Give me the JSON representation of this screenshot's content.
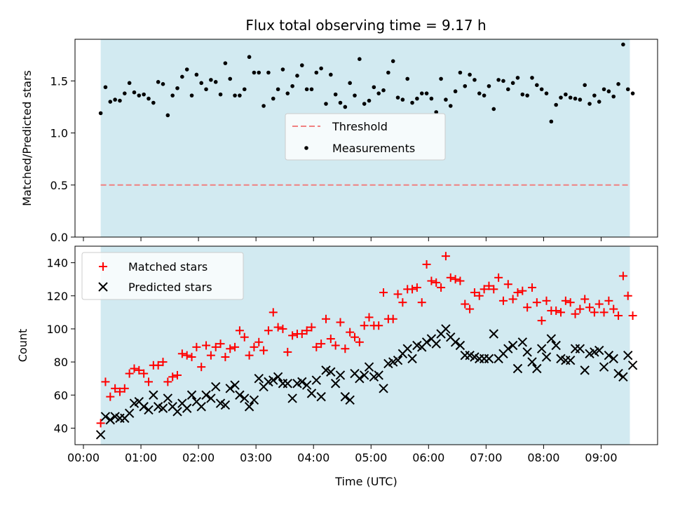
{
  "chart_data": [
    {
      "type": "scatter",
      "title": "Flux total observing time = 9.17 h",
      "ylabel": "Matched/Predicted stars",
      "xlabel": "",
      "xlim": [
        "00:00",
        "10:00"
      ],
      "ylim": [
        0,
        1.9
      ],
      "yticks": [
        "0.0",
        "0.5",
        "1.0",
        "1.5"
      ],
      "shaded_span": [
        "00:18",
        "09:30"
      ],
      "shade_color": "#add8e6",
      "legend": {
        "placement": "center",
        "entries": [
          "Threshold",
          "Measurements"
        ]
      },
      "threshold": {
        "name": "Threshold",
        "value": 0.5,
        "color": "#f08080"
      },
      "series": [
        {
          "name": "Measurements",
          "color": "#000000",
          "x": [
            "00:18",
            "00:23",
            "00:28",
            "00:33",
            "00:38",
            "00:43",
            "00:48",
            "00:53",
            "00:58",
            "01:03",
            "01:08",
            "01:13",
            "01:18",
            "01:23",
            "01:28",
            "01:33",
            "01:38",
            "01:43",
            "01:48",
            "01:53",
            "01:58",
            "02:03",
            "02:08",
            "02:13",
            "02:18",
            "02:23",
            "02:28",
            "02:33",
            "02:38",
            "02:43",
            "02:48",
            "02:53",
            "02:58",
            "03:03",
            "03:08",
            "03:13",
            "03:18",
            "03:23",
            "03:28",
            "03:33",
            "03:38",
            "03:43",
            "03:48",
            "03:53",
            "03:58",
            "04:03",
            "04:08",
            "04:13",
            "04:18",
            "04:23",
            "04:28",
            "04:33",
            "04:38",
            "04:43",
            "04:48",
            "04:53",
            "04:58",
            "05:03",
            "05:08",
            "05:13",
            "05:18",
            "05:23",
            "05:28",
            "05:33",
            "05:38",
            "05:43",
            "05:48",
            "05:53",
            "05:58",
            "06:03",
            "06:08",
            "06:13",
            "06:18",
            "06:23",
            "06:28",
            "06:33",
            "06:38",
            "06:43",
            "06:48",
            "06:53",
            "06:58",
            "07:03",
            "07:08",
            "07:13",
            "07:18",
            "07:23",
            "07:28",
            "07:33",
            "07:38",
            "07:43",
            "07:48",
            "07:53",
            "07:58",
            "08:03",
            "08:08",
            "08:13",
            "08:18",
            "08:23",
            "08:28",
            "08:33",
            "08:38",
            "08:43",
            "08:48",
            "08:53",
            "08:58",
            "09:03",
            "09:08",
            "09:13",
            "09:18",
            "09:23",
            "09:28",
            "09:33"
          ],
          "y": [
            1.19,
            1.44,
            1.3,
            1.32,
            1.31,
            1.38,
            1.48,
            1.39,
            1.36,
            1.37,
            1.33,
            1.29,
            1.49,
            1.47,
            1.17,
            1.36,
            1.43,
            1.54,
            1.61,
            1.36,
            1.56,
            1.48,
            1.42,
            1.51,
            1.49,
            1.37,
            1.67,
            1.52,
            1.36,
            1.36,
            1.42,
            1.73,
            1.58,
            1.58,
            1.26,
            1.58,
            1.33,
            1.42,
            1.61,
            1.38,
            1.45,
            1.55,
            1.65,
            1.42,
            1.42,
            1.58,
            1.62,
            1.28,
            1.56,
            1.37,
            1.29,
            1.25,
            1.48,
            1.36,
            1.71,
            1.28,
            1.31,
            1.44,
            1.38,
            1.41,
            1.58,
            1.69,
            1.34,
            1.32,
            1.52,
            1.29,
            1.33,
            1.38,
            1.38,
            1.33,
            1.2,
            1.52,
            1.32,
            1.26,
            1.4,
            1.58,
            1.45,
            1.56,
            1.51,
            1.38,
            1.36,
            1.45,
            1.23,
            1.51,
            1.5,
            1.42,
            1.48,
            1.53,
            1.37,
            1.36,
            1.53,
            1.46,
            1.42,
            1.38,
            1.11,
            1.27,
            1.34,
            1.37,
            1.34,
            1.33,
            1.32,
            1.46,
            1.28,
            1.36,
            1.3,
            1.42,
            1.4,
            1.35,
            1.47,
            1.85,
            1.42,
            1.38
          ]
        }
      ]
    },
    {
      "type": "scatter",
      "title": "",
      "xlabel": "Time (UTC)",
      "ylabel": "Count",
      "xlim": [
        "00:00",
        "10:00"
      ],
      "xticks": [
        "00:00",
        "01:00",
        "02:00",
        "03:00",
        "04:00",
        "05:00",
        "06:00",
        "07:00",
        "08:00",
        "09:00"
      ],
      "ylim": [
        30,
        150
      ],
      "yticks": [
        "40",
        "60",
        "80",
        "100",
        "120",
        "140"
      ],
      "shaded_span": [
        "00:18",
        "09:30"
      ],
      "shade_color": "#add8e6",
      "legend": {
        "placement": "top-left",
        "entries": [
          "Matched stars",
          "Predicted stars"
        ]
      },
      "x": [
        "00:18",
        "00:23",
        "00:28",
        "00:33",
        "00:38",
        "00:43",
        "00:48",
        "00:53",
        "00:58",
        "01:03",
        "01:08",
        "01:13",
        "01:18",
        "01:23",
        "01:28",
        "01:33",
        "01:38",
        "01:43",
        "01:48",
        "01:53",
        "01:58",
        "02:03",
        "02:08",
        "02:13",
        "02:18",
        "02:23",
        "02:28",
        "02:33",
        "02:38",
        "02:43",
        "02:48",
        "02:53",
        "02:58",
        "03:03",
        "03:08",
        "03:13",
        "03:18",
        "03:23",
        "03:28",
        "03:33",
        "03:38",
        "03:43",
        "03:48",
        "03:53",
        "03:58",
        "04:03",
        "04:08",
        "04:13",
        "04:18",
        "04:23",
        "04:28",
        "04:33",
        "04:38",
        "04:43",
        "04:48",
        "04:53",
        "04:58",
        "05:03",
        "05:08",
        "05:13",
        "05:18",
        "05:23",
        "05:28",
        "05:33",
        "05:38",
        "05:43",
        "05:48",
        "05:53",
        "05:58",
        "06:03",
        "06:08",
        "06:13",
        "06:18",
        "06:23",
        "06:28",
        "06:33",
        "06:38",
        "06:43",
        "06:48",
        "06:53",
        "06:58",
        "07:03",
        "07:08",
        "07:13",
        "07:18",
        "07:23",
        "07:28",
        "07:33",
        "07:38",
        "07:43",
        "07:48",
        "07:53",
        "07:58",
        "08:03",
        "08:08",
        "08:13",
        "08:18",
        "08:23",
        "08:28",
        "08:33",
        "08:38",
        "08:43",
        "08:48",
        "08:53",
        "08:58",
        "09:03",
        "09:08",
        "09:13",
        "09:18",
        "09:23",
        "09:28",
        "09:33"
      ],
      "series": [
        {
          "name": "Matched stars",
          "marker": "+",
          "color": "#ff0000",
          "values": [
            43,
            68,
            59,
            64,
            62,
            64,
            73,
            76,
            75,
            73,
            68,
            78,
            78,
            80,
            68,
            71,
            72,
            85,
            84,
            83,
            89,
            77,
            90,
            84,
            89,
            91,
            83,
            88,
            89,
            99,
            95,
            84,
            89,
            92,
            87,
            99,
            110,
            101,
            100,
            86,
            96,
            97,
            97,
            99,
            101,
            89,
            91,
            106,
            94,
            90,
            104,
            88,
            98,
            95,
            92,
            102,
            107,
            102,
            102,
            122,
            106,
            106,
            121,
            116,
            124,
            124,
            125,
            116,
            139,
            129,
            128,
            125,
            144,
            131,
            130,
            129,
            115,
            112,
            122,
            120,
            124,
            126,
            124,
            131,
            117,
            127,
            118,
            122,
            123,
            113,
            125,
            116,
            105,
            117,
            111,
            111,
            110,
            117,
            116,
            109,
            112,
            118,
            113,
            110,
            115,
            110,
            117,
            112,
            108,
            132,
            120,
            108
          ]
        },
        {
          "name": "Predicted stars",
          "marker": "x",
          "color": "#000000",
          "values": [
            36,
            47,
            45,
            47,
            46,
            46,
            49,
            55,
            56,
            53,
            51,
            60,
            53,
            52,
            58,
            53,
            50,
            55,
            52,
            60,
            56,
            53,
            60,
            58,
            65,
            55,
            54,
            64,
            66,
            60,
            58,
            53,
            57,
            70,
            65,
            68,
            69,
            71,
            67,
            67,
            58,
            67,
            68,
            66,
            61,
            69,
            59,
            75,
            74,
            67,
            72,
            59,
            57,
            73,
            70,
            72,
            77,
            71,
            72,
            64,
            79,
            80,
            81,
            85,
            88,
            82,
            90,
            89,
            92,
            94,
            91,
            97,
            100,
            95,
            92,
            90,
            84,
            84,
            83,
            82,
            82,
            82,
            97,
            82,
            85,
            88,
            90,
            76,
            92,
            86,
            80,
            76,
            88,
            83,
            94,
            90,
            82,
            81,
            81,
            88,
            88,
            75,
            85,
            86,
            87,
            77,
            84,
            82,
            73,
            71,
            84,
            78
          ]
        }
      ]
    }
  ]
}
